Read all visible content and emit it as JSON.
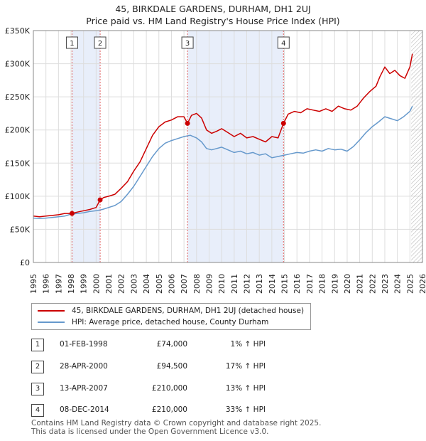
{
  "title_line1": "45, BIRKDALE GARDENS, DURHAM, DH1 2UJ",
  "title_line2": "Price paid vs. HM Land Registry's House Price Index (HPI)",
  "colors": {
    "red": "#cc0000",
    "blue": "#6699cc",
    "shade": "#e8eefa",
    "grid": "#dddddd",
    "vline": "#e06060"
  },
  "chart_data": {
    "type": "line",
    "title": "45, BIRKDALE GARDENS, DURHAM, DH1 2UJ",
    "subtitle": "Price paid vs. HM Land Registry's House Price Index (HPI)",
    "xlabel": "",
    "ylabel": "",
    "xlim": [
      1995,
      2026
    ],
    "ylim": [
      0,
      350000
    ],
    "x_ticks": [
      "1995",
      "1996",
      "1997",
      "1998",
      "1999",
      "2000",
      "2001",
      "2002",
      "2003",
      "2004",
      "2005",
      "2006",
      "2007",
      "2008",
      "2009",
      "2010",
      "2011",
      "2012",
      "2013",
      "2014",
      "2015",
      "2016",
      "2017",
      "2018",
      "2019",
      "2020",
      "2021",
      "2022",
      "2023",
      "2024",
      "2025",
      "2026"
    ],
    "y_ticks": [
      {
        "value": 0,
        "label": "£0"
      },
      {
        "value": 50000,
        "label": "£50K"
      },
      {
        "value": 100000,
        "label": "£100K"
      },
      {
        "value": 150000,
        "label": "£150K"
      },
      {
        "value": 200000,
        "label": "£200K"
      },
      {
        "value": 250000,
        "label": "£250K"
      },
      {
        "value": 300000,
        "label": "£300K"
      },
      {
        "value": 350000,
        "label": "£350K"
      }
    ],
    "shaded_spans": [
      [
        1998.08,
        2000.32
      ],
      [
        2007.28,
        2014.93
      ]
    ],
    "future_hatch_from": 2025.1,
    "series": [
      {
        "name": "45, BIRKDALE GARDENS, DURHAM, DH1 2UJ (detached house)",
        "color": "#cc0000",
        "x": [
          1995.0,
          1995.5,
          1996.0,
          1996.5,
          1997.0,
          1997.5,
          1998.08,
          1998.5,
          1999.0,
          1999.5,
          2000.0,
          2000.32,
          2000.6,
          2001.0,
          2001.5,
          2002.0,
          2002.5,
          2003.0,
          2003.5,
          2004.0,
          2004.5,
          2005.0,
          2005.5,
          2006.0,
          2006.5,
          2007.0,
          2007.28,
          2007.6,
          2008.0,
          2008.4,
          2008.8,
          2009.2,
          2009.6,
          2010.0,
          2010.5,
          2011.0,
          2011.5,
          2012.0,
          2012.5,
          2013.0,
          2013.5,
          2014.0,
          2014.5,
          2014.93,
          2015.3,
          2015.8,
          2016.3,
          2016.8,
          2017.3,
          2017.8,
          2018.3,
          2018.8,
          2019.3,
          2019.8,
          2020.3,
          2020.8,
          2021.3,
          2021.8,
          2022.3,
          2022.6,
          2023.0,
          2023.4,
          2023.8,
          2024.2,
          2024.6,
          2025.0,
          2025.2
        ],
        "y": [
          70000,
          69000,
          70000,
          71000,
          72000,
          74000,
          74000,
          76000,
          78000,
          80000,
          83000,
          94500,
          98000,
          100000,
          103000,
          112000,
          122000,
          138000,
          152000,
          172000,
          192000,
          205000,
          212000,
          215000,
          220000,
          220000,
          210000,
          222000,
          225000,
          218000,
          200000,
          195000,
          198000,
          202000,
          196000,
          190000,
          195000,
          188000,
          190000,
          186000,
          182000,
          190000,
          188000,
          210000,
          224000,
          228000,
          226000,
          232000,
          230000,
          228000,
          232000,
          228000,
          236000,
          232000,
          230000,
          236000,
          248000,
          258000,
          266000,
          280000,
          295000,
          285000,
          290000,
          282000,
          278000,
          295000,
          315000
        ]
      },
      {
        "name": "HPI: Average price, detached house, County Durham",
        "color": "#6699cc",
        "x": [
          1995.0,
          1995.5,
          1996.0,
          1996.5,
          1997.0,
          1997.5,
          1998.0,
          1998.5,
          1999.0,
          1999.5,
          2000.0,
          2000.5,
          2001.0,
          2001.5,
          2002.0,
          2002.5,
          2003.0,
          2003.5,
          2004.0,
          2004.5,
          2005.0,
          2005.5,
          2006.0,
          2006.5,
          2007.0,
          2007.5,
          2008.0,
          2008.4,
          2008.8,
          2009.2,
          2009.6,
          2010.0,
          2010.5,
          2011.0,
          2011.5,
          2012.0,
          2012.5,
          2013.0,
          2013.5,
          2014.0,
          2014.5,
          2015.0,
          2015.5,
          2016.0,
          2016.5,
          2017.0,
          2017.5,
          2018.0,
          2018.5,
          2019.0,
          2019.5,
          2020.0,
          2020.5,
          2021.0,
          2021.5,
          2022.0,
          2022.5,
          2023.0,
          2023.5,
          2024.0,
          2024.5,
          2025.0,
          2025.2
        ],
        "y": [
          67000,
          66500,
          67000,
          68000,
          69000,
          70000,
          73000,
          74000,
          75000,
          77000,
          78000,
          80000,
          83000,
          86000,
          92000,
          103000,
          115000,
          130000,
          145000,
          160000,
          172000,
          180000,
          184000,
          187000,
          190000,
          192000,
          188000,
          182000,
          172000,
          170000,
          172000,
          174000,
          170000,
          166000,
          168000,
          164000,
          166000,
          162000,
          164000,
          158000,
          160000,
          162000,
          164000,
          166000,
          165000,
          168000,
          170000,
          168000,
          172000,
          170000,
          171000,
          168000,
          175000,
          185000,
          196000,
          205000,
          212000,
          220000,
          217000,
          214000,
          220000,
          228000,
          236000
        ]
      }
    ],
    "transactions": [
      {
        "label": "1",
        "x": 1998.08,
        "price": 74000
      },
      {
        "label": "2",
        "x": 2000.32,
        "price": 94500
      },
      {
        "label": "3",
        "x": 2007.28,
        "price": 210000
      },
      {
        "label": "4",
        "x": 2014.93,
        "price": 210000
      }
    ]
  },
  "legend": {
    "red_label": "45, BIRKDALE GARDENS, DURHAM, DH1 2UJ (detached house)",
    "blue_label": "HPI: Average price, detached house, County Durham"
  },
  "table": [
    {
      "num": "1",
      "date": "01-FEB-1998",
      "price": "£74,000",
      "hpi": "1% ↑ HPI"
    },
    {
      "num": "2",
      "date": "28-APR-2000",
      "price": "£94,500",
      "hpi": "17% ↑ HPI"
    },
    {
      "num": "3",
      "date": "13-APR-2007",
      "price": "£210,000",
      "hpi": "13% ↑ HPI"
    },
    {
      "num": "4",
      "date": "08-DEC-2014",
      "price": "£210,000",
      "hpi": "33% ↑ HPI"
    }
  ],
  "footer": {
    "line1": "Contains HM Land Registry data © Crown copyright and database right 2025.",
    "line2": "This data is licensed under the Open Government Licence v3.0."
  }
}
